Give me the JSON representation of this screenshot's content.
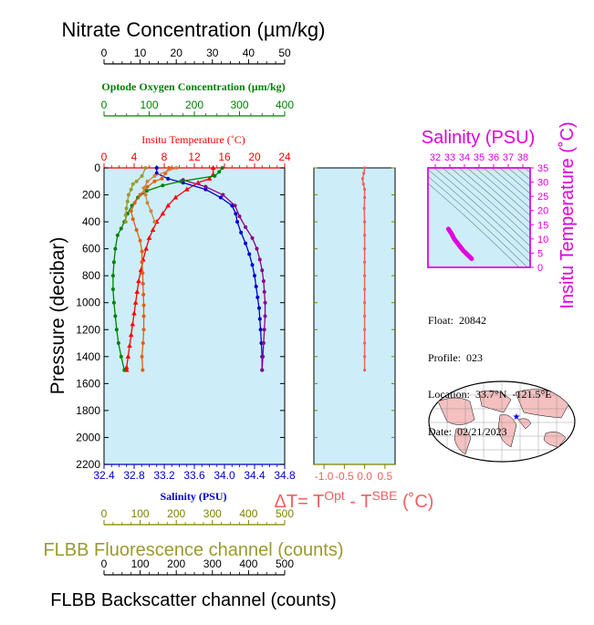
{
  "titles": {
    "nitrate": "Nitrate Concentration (µm/kg)",
    "oxygen": "Optode Oxygen Concentration (µm/kg)",
    "temperature": "Insitu Temperature (˚C)",
    "salinity": "Salinity (PSU)",
    "pressure": "Pressure (decibar)",
    "fluorescence": "FLBB Fluorescence channel (counts)",
    "backscatter": "FLBB Backscatter channel (counts)",
    "ts_salinity": "Salinity (PSU)",
    "ts_temperature": "Insitu Temperature (˚C)",
    "dt_prefix": "ΔT= T",
    "dt_sup1": "Opt",
    "dt_mid": " - T",
    "dt_sup2": "SBE",
    "dt_suffix": " (˚C)"
  },
  "meta": {
    "float": "Float:  20842",
    "profile": "Profile:  023",
    "location": "Location:  33.7°N  -121.5°E",
    "date": "Date:  02/21/2023"
  },
  "colors": {
    "panel_bg": "#cdeef8",
    "axis_olive": "#808000",
    "nitrate": "#000000",
    "oxygen": "#008000",
    "temperature": "#ff0000",
    "salinity": "#0000cd",
    "salinity2": "#8b008b",
    "fluorescence": "#9a9a30",
    "backscatter": "#cd853f",
    "orange": "#e06010",
    "dt": "#f06060",
    "magenta": "#e000e0"
  },
  "chart_data": [
    {
      "type": "line",
      "name": "main-profile",
      "axes": {
        "pressure": {
          "ticks": [
            "0",
            "200",
            "400",
            "600",
            "800",
            "1000",
            "1200",
            "1400",
            "1600",
            "1800",
            "2000",
            "2200"
          ],
          "range": [
            0,
            2200
          ],
          "inverted": true
        },
        "salinity": {
          "ticks": [
            "32.4",
            "32.8",
            "33.2",
            "33.6",
            "34.0",
            "34.4",
            "34.8"
          ],
          "range": [
            32.4,
            34.8
          ]
        },
        "temperature": {
          "ticks": [
            "0",
            "4",
            "8",
            "12",
            "16",
            "20",
            "24"
          ],
          "range": [
            0,
            24
          ]
        },
        "oxygen": {
          "ticks": [
            "0",
            "100",
            "200",
            "300",
            "400"
          ],
          "range": [
            0,
            400
          ]
        },
        "nitrate": {
          "ticks": [
            "0",
            "10",
            "20",
            "30",
            "40",
            "50"
          ],
          "range": [
            0,
            50
          ]
        },
        "fluorescence": {
          "ticks": [
            "0",
            "100",
            "200",
            "300",
            "400",
            "500"
          ],
          "range": [
            0,
            500
          ]
        },
        "backscatter": {
          "ticks": [
            "0",
            "100",
            "200",
            "300",
            "400",
            "500"
          ],
          "range": [
            0,
            500
          ]
        }
      },
      "series": [
        {
          "var": "temperature",
          "color": "red",
          "points": [
            [
              14.5,
              0
            ],
            [
              14.5,
              50
            ],
            [
              14,
              80
            ],
            [
              12.5,
              110
            ],
            [
              11,
              160
            ],
            [
              9.5,
              220
            ],
            [
              8.5,
              280
            ],
            [
              7.8,
              340
            ],
            [
              7,
              400
            ],
            [
              6.5,
              460
            ],
            [
              6,
              520
            ],
            [
              5.6,
              600
            ],
            [
              5.2,
              680
            ],
            [
              4.9,
              760
            ],
            [
              4.6,
              840
            ],
            [
              4.4,
              920
            ],
            [
              4.2,
              1000
            ],
            [
              4,
              1080
            ],
            [
              3.8,
              1160
            ],
            [
              3.6,
              1240
            ],
            [
              3.4,
              1320
            ],
            [
              3.2,
              1400
            ],
            [
              3,
              1480
            ],
            [
              3,
              1500
            ]
          ]
        },
        {
          "var": "salinity",
          "color": "blue",
          "points": [
            [
              33.1,
              0
            ],
            [
              33.1,
              40
            ],
            [
              33.25,
              80
            ],
            [
              33.45,
              110
            ],
            [
              33.75,
              160
            ],
            [
              33.95,
              220
            ],
            [
              34.1,
              280
            ],
            [
              34.15,
              340
            ],
            [
              34.17,
              400
            ],
            [
              34.22,
              480
            ],
            [
              34.28,
              560
            ],
            [
              34.33,
              640
            ],
            [
              34.37,
              720
            ],
            [
              34.4,
              800
            ],
            [
              34.42,
              880
            ],
            [
              34.44,
              960
            ],
            [
              34.46,
              1040
            ],
            [
              34.47,
              1120
            ],
            [
              34.48,
              1200
            ],
            [
              34.49,
              1300
            ],
            [
              34.5,
              1400
            ],
            [
              34.5,
              1500
            ]
          ]
        },
        {
          "var": "salinity",
          "color": "purple",
          "points": [
            [
              33.45,
              90
            ],
            [
              33.75,
              140
            ],
            [
              33.98,
              200
            ],
            [
              34.14,
              280
            ],
            [
              34.2,
              360
            ],
            [
              34.28,
              440
            ],
            [
              34.37,
              520
            ],
            [
              34.43,
              600
            ],
            [
              34.47,
              680
            ],
            [
              34.5,
              760
            ],
            [
              34.52,
              840
            ],
            [
              34.53,
              920
            ],
            [
              34.54,
              1000
            ],
            [
              34.54,
              1100
            ],
            [
              34.53,
              1200
            ],
            [
              34.52,
              1300
            ],
            [
              34.51,
              1400
            ],
            [
              34.5,
              1500
            ]
          ]
        },
        {
          "var": "oxygen",
          "color": "green",
          "points": [
            [
              262,
              0
            ],
            [
              255,
              30
            ],
            [
              245,
              60
            ],
            [
              170,
              100
            ],
            [
              130,
              130
            ],
            [
              95,
              170
            ],
            [
              75,
              220
            ],
            [
              62,
              280
            ],
            [
              52,
              340
            ],
            [
              45,
              400
            ],
            [
              38,
              450
            ],
            [
              30,
              500
            ],
            [
              25,
              600
            ],
            [
              22,
              700
            ],
            [
              20,
              800
            ],
            [
              20,
              900
            ],
            [
              22,
              1000
            ],
            [
              25,
              1100
            ],
            [
              28,
              1200
            ],
            [
              32,
              1300
            ],
            [
              38,
              1400
            ],
            [
              45,
              1500
            ]
          ]
        },
        {
          "var": "nitrate",
          "color": "orange",
          "points": [
            [
              18,
              0
            ],
            [
              17,
              40
            ],
            [
              16,
              80
            ],
            [
              14,
              100
            ],
            [
              12,
              140
            ],
            [
              10,
              200
            ],
            [
              8.5,
              260
            ],
            [
              7.5,
              320
            ],
            [
              8,
              380
            ],
            [
              9,
              460
            ],
            [
              10,
              540
            ],
            [
              10.5,
              620
            ],
            [
              10.5,
              700
            ],
            [
              10.7,
              780
            ],
            [
              10.8,
              860
            ],
            [
              10.9,
              940
            ],
            [
              11,
              1020
            ],
            [
              11,
              1100
            ],
            [
              11,
              1200
            ],
            [
              10.8,
              1300
            ],
            [
              10.5,
              1400
            ],
            [
              10.7,
              1500
            ]
          ]
        },
        {
          "var": "fluorescence",
          "color": "olive",
          "points": [
            [
              115,
              0
            ],
            [
              105,
              60
            ],
            [
              90,
              100
            ],
            [
              80,
              120
            ],
            [
              75,
              160
            ],
            [
              68,
              200
            ],
            [
              65,
              250
            ],
            [
              62,
              300
            ],
            [
              60,
              350
            ],
            [
              60,
              400
            ]
          ]
        },
        {
          "var": "backscatter",
          "color": "tan",
          "points": [
            [
              200,
              0
            ],
            [
              140,
              60
            ],
            [
              120,
              100
            ],
            [
              110,
              150
            ],
            [
              115,
              200
            ],
            [
              120,
              260
            ],
            [
              130,
              320
            ],
            [
              140,
              400
            ]
          ]
        }
      ]
    },
    {
      "type": "line",
      "name": "delta-t",
      "axes": {
        "x": {
          "ticks": [
            "-1.0",
            "-0.5",
            "0.0",
            "0.5"
          ],
          "range": [
            -1.25,
            0.75
          ]
        },
        "pressure": {
          "range": [
            0,
            2200
          ],
          "inverted": true
        }
      },
      "series": [
        {
          "color": "salmon",
          "points": [
            [
              0.0,
              0
            ],
            [
              -0.02,
              40
            ],
            [
              -0.05,
              80
            ],
            [
              -0.03,
              120
            ],
            [
              0.0,
              160
            ],
            [
              0.0,
              220
            ],
            [
              -0.01,
              300
            ],
            [
              0.0,
              400
            ],
            [
              0.0,
              500
            ],
            [
              0.0,
              600
            ],
            [
              0.0,
              700
            ],
            [
              0.0,
              800
            ],
            [
              0.0,
              900
            ],
            [
              0.0,
              1000
            ],
            [
              0.0,
              1100
            ],
            [
              0.0,
              1200
            ],
            [
              0.0,
              1300
            ],
            [
              0.0,
              1400
            ],
            [
              0.0,
              1500
            ]
          ]
        }
      ]
    },
    {
      "type": "scatter",
      "name": "ts-diagram",
      "axes": {
        "x": {
          "ticks": [
            "32",
            "33",
            "34",
            "35",
            "36",
            "37",
            "38"
          ],
          "range": [
            31.5,
            38.5
          ]
        },
        "y": {
          "ticks": [
            "0",
            "5",
            "10",
            "15",
            "20",
            "25",
            "30",
            "35"
          ],
          "range": [
            0,
            35
          ]
        }
      },
      "series": [
        {
          "color": "magenta",
          "points": [
            [
              32.9,
              13.5
            ],
            [
              33.1,
              12
            ],
            [
              33.3,
              10
            ],
            [
              33.6,
              8
            ],
            [
              33.9,
              6
            ],
            [
              34.1,
              5
            ],
            [
              34.3,
              4
            ],
            [
              34.4,
              3.5
            ],
            [
              34.5,
              3
            ]
          ]
        }
      ]
    }
  ]
}
